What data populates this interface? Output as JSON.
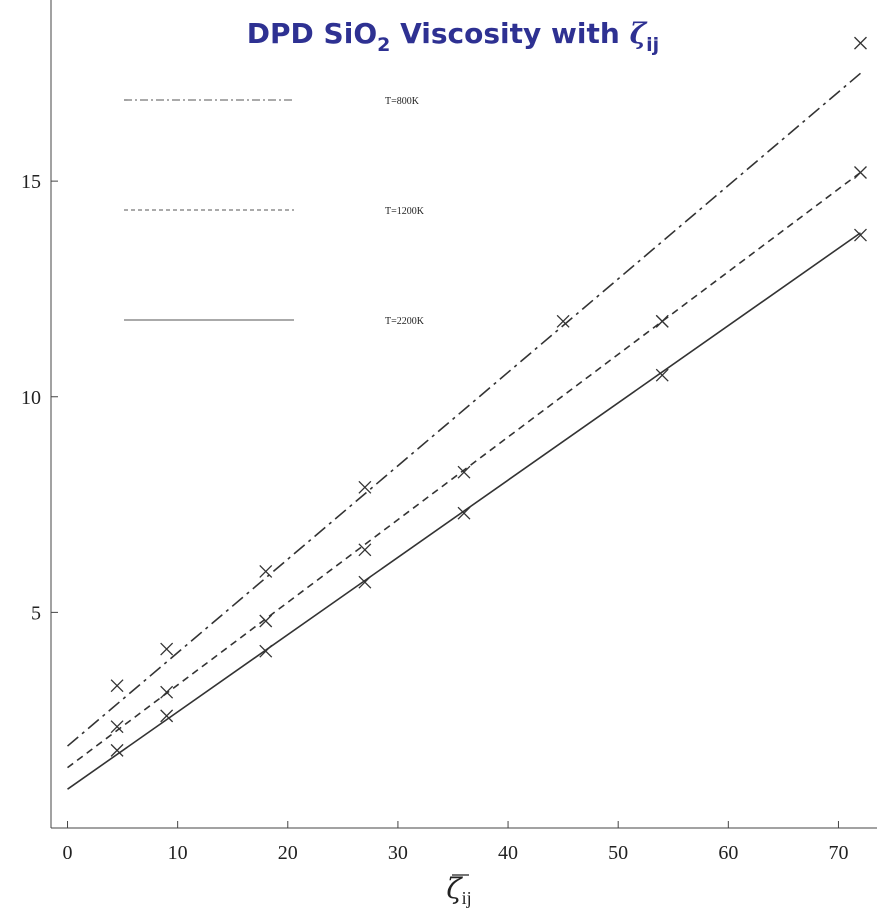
{
  "chart_data": {
    "type": "line",
    "title": {
      "main": "DPD SiO",
      "sub2": "2",
      "rest": " Viscosity with ",
      "symbol": "ζ",
      "symbol_sub": "ij"
    },
    "title_color": "#2e3192",
    "xlabel": "ζ",
    "xlabel_sub": "ij",
    "ylabel": "",
    "xlim": [
      -1.5,
      73.5
    ],
    "ylim": [
      0,
      19.2
    ],
    "x_ticks": [
      0,
      10,
      20,
      30,
      40,
      50,
      60,
      70
    ],
    "y_ticks": [
      5,
      10,
      15
    ],
    "x_tick_labels": [
      "0",
      "10",
      "20",
      "30",
      "40",
      "50",
      "60",
      "70"
    ],
    "y_tick_labels": [
      "5",
      "10",
      "15"
    ],
    "grid": false,
    "legend_position": "top-left",
    "series": [
      {
        "name": "T=800K",
        "line_style": "dashdot",
        "fit": {
          "x": [
            0,
            72
          ],
          "y": [
            1.9,
            17.5
          ]
        },
        "points": [
          {
            "x": 4.5,
            "y": 3.3
          },
          {
            "x": 9,
            "y": 4.15
          },
          {
            "x": 18,
            "y": 5.95
          },
          {
            "x": 27,
            "y": 7.9
          },
          {
            "x": 36,
            "y": 8.25
          },
          {
            "x": 45,
            "y": 11.75
          },
          {
            "x": 54,
            "y": 11.75
          },
          {
            "x": 72,
            "y": 18.2
          }
        ]
      },
      {
        "name": "T=1200K",
        "line_style": "dashed",
        "fit": {
          "x": [
            0,
            72
          ],
          "y": [
            1.4,
            15.2
          ]
        },
        "points": [
          {
            "x": 4.5,
            "y": 2.35
          },
          {
            "x": 9,
            "y": 3.15
          },
          {
            "x": 18,
            "y": 4.8
          },
          {
            "x": 27,
            "y": 6.45
          },
          {
            "x": 54,
            "y": 11.75
          },
          {
            "x": 72,
            "y": 15.2
          }
        ]
      },
      {
        "name": "T=2200K",
        "line_style": "solid",
        "fit": {
          "x": [
            0,
            72
          ],
          "y": [
            0.9,
            13.8
          ]
        },
        "points": [
          {
            "x": 4.5,
            "y": 1.8
          },
          {
            "x": 9,
            "y": 2.6
          },
          {
            "x": 18,
            "y": 4.1
          },
          {
            "x": 27,
            "y": 5.7
          },
          {
            "x": 36,
            "y": 7.3
          },
          {
            "x": 54,
            "y": 10.5
          },
          {
            "x": 72,
            "y": 13.75
          }
        ]
      }
    ]
  }
}
